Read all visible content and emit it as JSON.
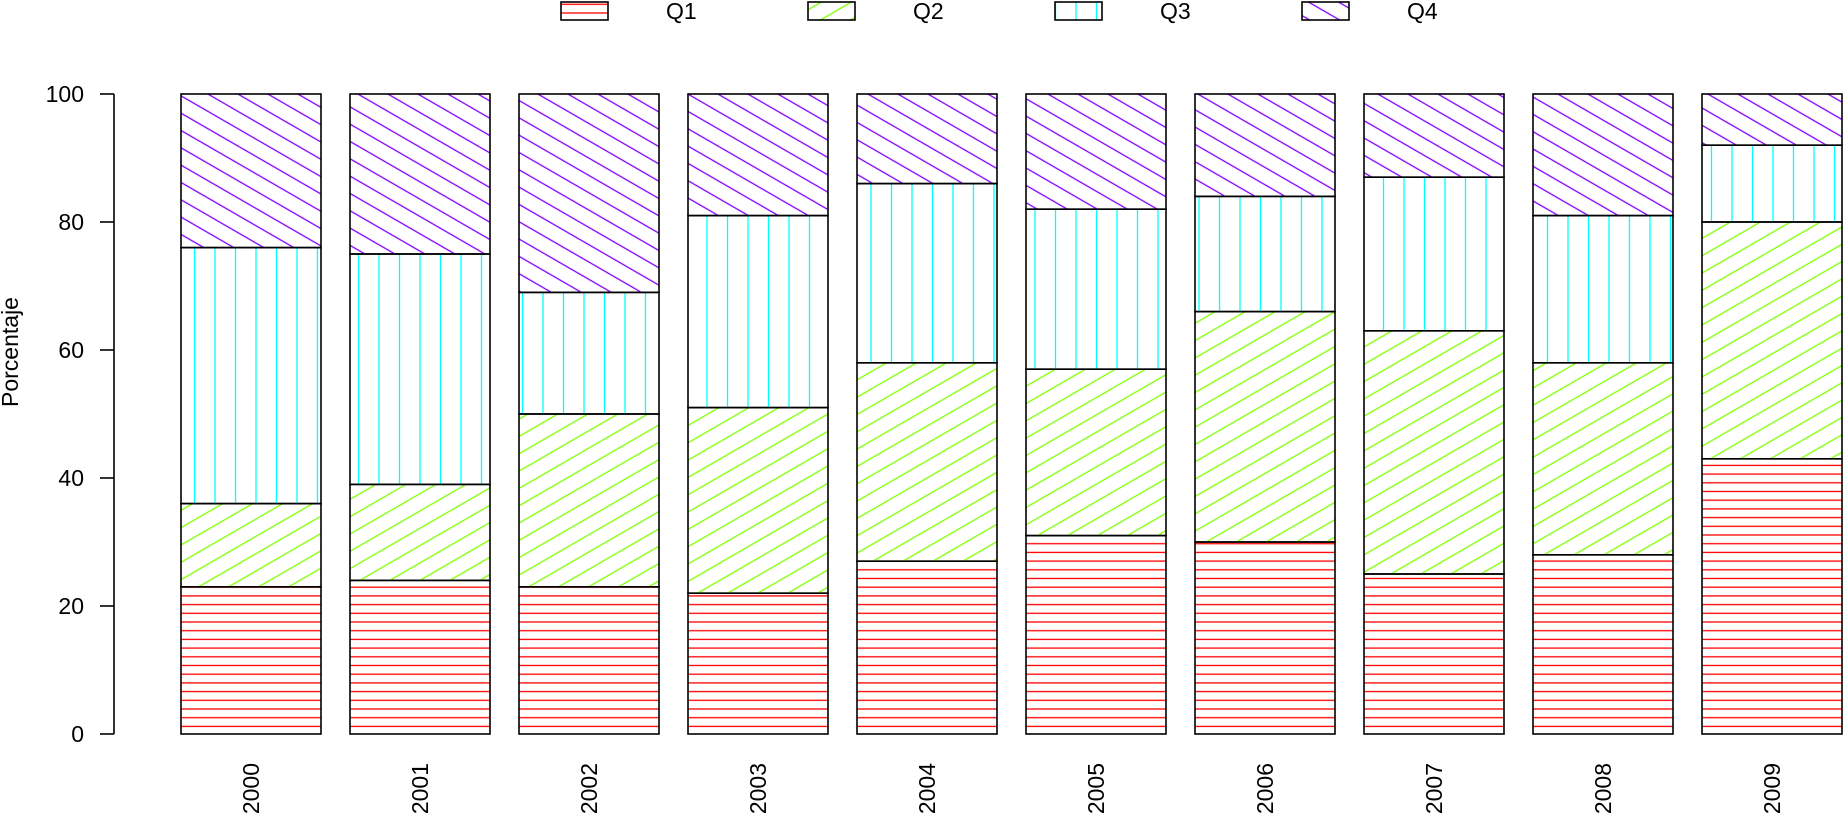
{
  "chart_data": {
    "type": "bar",
    "stacked": true,
    "title": "",
    "xlabel": "",
    "ylabel": "Porcentaje",
    "ylim": [
      0,
      100
    ],
    "yticks": [
      "0",
      "20",
      "40",
      "60",
      "80",
      "100"
    ],
    "categories": [
      "2000",
      "2001",
      "2002",
      "2003",
      "2004",
      "2005",
      "2006",
      "2007",
      "2008",
      "2009"
    ],
    "series": [
      {
        "name": "Q1",
        "color": "#ff0000",
        "pattern": "horizontal-lines",
        "values": [
          23,
          24,
          23,
          22,
          27,
          31,
          30,
          25,
          28,
          43
        ]
      },
      {
        "name": "Q2",
        "color": "#80ff00",
        "pattern": "diagonal-45",
        "values": [
          13,
          15,
          27,
          29,
          31,
          26,
          36,
          38,
          30,
          37
        ]
      },
      {
        "name": "Q3",
        "color": "#00ffff",
        "pattern": "vertical-lines",
        "values": [
          40,
          36,
          19,
          30,
          28,
          25,
          18,
          24,
          23,
          12
        ]
      },
      {
        "name": "Q4",
        "color": "#8000ff",
        "pattern": "diagonal-135",
        "values": [
          24,
          25,
          31,
          19,
          14,
          18,
          16,
          13,
          19,
          8
        ]
      }
    ],
    "legend": {
      "position": "top",
      "orientation": "horizontal"
    },
    "grid": false
  }
}
